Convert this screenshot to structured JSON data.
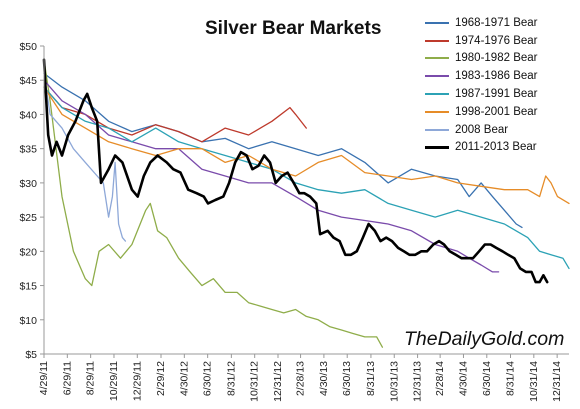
{
  "chart_data": {
    "type": "line",
    "title": "Silver Bear Markets",
    "watermark": "TheDailyGold.com",
    "xlabel": "",
    "ylabel": "",
    "ylim": [
      5,
      50
    ],
    "y_ticks": [
      "$5",
      "$10",
      "$15",
      "$20",
      "$25",
      "$30",
      "$35",
      "$40",
      "$45",
      "$50"
    ],
    "x_ticks": [
      "4/29/11",
      "6/29/11",
      "8/29/11",
      "10/29/11",
      "12/29/11",
      "2/29/12",
      "4/30/12",
      "6/30/12",
      "8/31/12",
      "10/31/12",
      "12/31/12",
      "2/28/13",
      "4/30/13",
      "6/30/13",
      "8/31/13",
      "10/31/13",
      "12/31/13",
      "2/28/14",
      "4/30/14",
      "6/30/14",
      "8/31/14",
      "10/31/14",
      "12/31/14"
    ],
    "x_range": [
      "4/29/11",
      "1/31/15"
    ],
    "grid": false,
    "legend_position": "top-right",
    "series": [
      {
        "name": "1968-1971 Bear",
        "color": "#3a72b0",
        "points": [
          [
            "4/29/11",
            46
          ],
          [
            "6/15/11",
            44
          ],
          [
            "8/15/11",
            42
          ],
          [
            "10/15/11",
            39
          ],
          [
            "12/15/11",
            37.5
          ],
          [
            "2/15/12",
            38.5
          ],
          [
            "4/15/12",
            37.5
          ],
          [
            "6/15/12",
            36
          ],
          [
            "8/15/12",
            36.5
          ],
          [
            "10/15/12",
            35
          ],
          [
            "12/15/12",
            36
          ],
          [
            "2/15/13",
            35
          ],
          [
            "4/15/13",
            34
          ],
          [
            "6/15/13",
            35
          ],
          [
            "8/15/13",
            33
          ],
          [
            "10/15/13",
            30
          ],
          [
            "12/15/13",
            32
          ],
          [
            "2/15/14",
            31
          ],
          [
            "4/15/14",
            30.5
          ],
          [
            "5/15/14",
            28
          ],
          [
            "6/15/14",
            30
          ],
          [
            "7/15/14",
            28
          ],
          [
            "8/15/14",
            26
          ],
          [
            "9/15/14",
            24
          ],
          [
            "9/30/14",
            23.5
          ]
        ]
      },
      {
        "name": "1974-1976 Bear",
        "color": "#be3a2c",
        "points": [
          [
            "4/29/11",
            44
          ],
          [
            "6/15/11",
            41
          ],
          [
            "8/15/11",
            40
          ],
          [
            "10/15/11",
            38
          ],
          [
            "12/15/11",
            37
          ],
          [
            "2/15/12",
            38.5
          ],
          [
            "4/15/12",
            37.5
          ],
          [
            "6/15/12",
            36
          ],
          [
            "8/15/12",
            38
          ],
          [
            "10/15/12",
            37
          ],
          [
            "12/15/12",
            39
          ],
          [
            "1/31/13",
            41
          ],
          [
            "2/15/13",
            40
          ],
          [
            "3/15/13",
            38
          ]
        ]
      },
      {
        "name": "1980-1982 Bear",
        "color": "#8fad4a",
        "points": [
          [
            "4/29/11",
            48
          ],
          [
            "5/15/11",
            42
          ],
          [
            "6/15/11",
            28
          ],
          [
            "7/15/11",
            20
          ],
          [
            "8/15/11",
            16
          ],
          [
            "9/1/11",
            15
          ],
          [
            "9/20/11",
            20
          ],
          [
            "10/15/11",
            21
          ],
          [
            "11/15/11",
            19
          ],
          [
            "12/15/11",
            21
          ],
          [
            "1/20/12",
            26
          ],
          [
            "2/1/12",
            27
          ],
          [
            "2/20/12",
            23
          ],
          [
            "3/15/12",
            22
          ],
          [
            "4/15/12",
            19
          ],
          [
            "5/15/12",
            17
          ],
          [
            "6/15/12",
            15
          ],
          [
            "7/15/12",
            16
          ],
          [
            "8/15/12",
            14
          ],
          [
            "9/15/12",
            14
          ],
          [
            "10/15/12",
            12.5
          ],
          [
            "11/15/12",
            12
          ],
          [
            "12/15/12",
            11.5
          ],
          [
            "1/15/13",
            11
          ],
          [
            "2/15/13",
            11.5
          ],
          [
            "3/15/13",
            10.5
          ],
          [
            "4/15/13",
            10
          ],
          [
            "5/15/13",
            9
          ],
          [
            "6/15/13",
            8.5
          ],
          [
            "7/15/13",
            8
          ],
          [
            "8/15/13",
            7.5
          ],
          [
            "9/15/13",
            7.5
          ],
          [
            "9/30/13",
            6
          ]
        ]
      },
      {
        "name": "1983-1986 Bear",
        "color": "#7a4bab",
        "points": [
          [
            "4/29/11",
            45
          ],
          [
            "6/15/11",
            42
          ],
          [
            "8/15/11",
            40
          ],
          [
            "10/15/11",
            37
          ],
          [
            "12/15/11",
            36
          ],
          [
            "2/15/12",
            35
          ],
          [
            "4/15/12",
            35
          ],
          [
            "6/15/12",
            32
          ],
          [
            "8/15/12",
            31
          ],
          [
            "10/15/12",
            30
          ],
          [
            "12/15/12",
            30
          ],
          [
            "2/15/13",
            28
          ],
          [
            "4/15/13",
            26
          ],
          [
            "6/15/13",
            25
          ],
          [
            "8/15/13",
            24.5
          ],
          [
            "10/15/13",
            24
          ],
          [
            "12/15/13",
            23
          ],
          [
            "2/15/14",
            21
          ],
          [
            "4/15/14",
            20
          ],
          [
            "5/15/14",
            19
          ],
          [
            "6/15/14",
            18
          ],
          [
            "7/15/14",
            17
          ],
          [
            "7/31/14",
            17
          ]
        ]
      },
      {
        "name": "1987-1991 Bear",
        "color": "#2ca2b5",
        "points": [
          [
            "4/29/11",
            44
          ],
          [
            "6/15/11",
            41
          ],
          [
            "8/15/11",
            39
          ],
          [
            "10/15/11",
            38
          ],
          [
            "12/15/11",
            36
          ],
          [
            "2/15/12",
            38
          ],
          [
            "4/15/12",
            36
          ],
          [
            "6/15/12",
            35
          ],
          [
            "8/15/12",
            34
          ],
          [
            "10/15/12",
            33
          ],
          [
            "12/15/12",
            32
          ],
          [
            "2/15/13",
            30
          ],
          [
            "4/15/13",
            29
          ],
          [
            "6/15/13",
            28.5
          ],
          [
            "8/15/13",
            29
          ],
          [
            "10/15/13",
            27
          ],
          [
            "12/15/13",
            26
          ],
          [
            "2/15/14",
            25
          ],
          [
            "4/15/14",
            26
          ],
          [
            "6/15/14",
            25
          ],
          [
            "8/15/14",
            24
          ],
          [
            "10/15/14",
            22
          ],
          [
            "11/15/14",
            20
          ],
          [
            "12/15/14",
            19.5
          ],
          [
            "1/15/15",
            19
          ],
          [
            "1/31/15",
            17.5
          ]
        ]
      },
      {
        "name": "1998-2001 Bear",
        "color": "#e68c28",
        "points": [
          [
            "4/29/11",
            44
          ],
          [
            "6/15/11",
            40
          ],
          [
            "8/15/11",
            38
          ],
          [
            "10/15/11",
            36
          ],
          [
            "12/15/11",
            35
          ],
          [
            "2/15/12",
            34
          ],
          [
            "4/15/12",
            35
          ],
          [
            "6/15/12",
            35
          ],
          [
            "8/15/12",
            33
          ],
          [
            "10/15/12",
            34
          ],
          [
            "12/15/12",
            32
          ],
          [
            "2/15/13",
            31
          ],
          [
            "4/15/13",
            33
          ],
          [
            "6/15/13",
            34
          ],
          [
            "8/15/13",
            31.5
          ],
          [
            "10/15/13",
            31
          ],
          [
            "12/15/13",
            30.5
          ],
          [
            "2/15/14",
            31
          ],
          [
            "4/15/14",
            30
          ],
          [
            "6/15/14",
            29.5
          ],
          [
            "8/15/14",
            29
          ],
          [
            "10/15/14",
            29
          ],
          [
            "11/15/14",
            28
          ],
          [
            "12/1/14",
            31
          ],
          [
            "12/15/14",
            30
          ],
          [
            "1/1/15",
            28
          ],
          [
            "1/31/15",
            27
          ]
        ]
      },
      {
        "name": "2008 Bear",
        "color": "#8ea8d8",
        "points": [
          [
            "4/29/11",
            46
          ],
          [
            "5/15/11",
            40
          ],
          [
            "6/15/11",
            38
          ],
          [
            "7/15/11",
            35
          ],
          [
            "8/15/11",
            33
          ],
          [
            "9/15/11",
            31
          ],
          [
            "10/1/11",
            30
          ],
          [
            "10/15/11",
            25
          ],
          [
            "10/25/11",
            28
          ],
          [
            "11/1/11",
            33
          ],
          [
            "11/10/11",
            24
          ],
          [
            "11/20/11",
            22
          ],
          [
            "11/28/11",
            21.5
          ]
        ]
      },
      {
        "name": "2011-2013 Bear",
        "color": "#000000",
        "points": [
          [
            "4/29/11",
            48
          ],
          [
            "5/10/11",
            37
          ],
          [
            "5/20/11",
            34
          ],
          [
            "6/1/11",
            36
          ],
          [
            "6/15/11",
            34
          ],
          [
            "7/1/11",
            37
          ],
          [
            "7/20/11",
            39
          ],
          [
            "8/10/11",
            42
          ],
          [
            "8/20/11",
            43
          ],
          [
            "9/1/11",
            41
          ],
          [
            "9/15/11",
            39
          ],
          [
            "9/25/11",
            30
          ],
          [
            "10/15/11",
            32
          ],
          [
            "11/1/11",
            34
          ],
          [
            "11/20/11",
            33
          ],
          [
            "12/15/11",
            29
          ],
          [
            "12/30/11",
            28
          ],
          [
            "1/15/12",
            31
          ],
          [
            "2/1/12",
            33
          ],
          [
            "2/20/12",
            34
          ],
          [
            "3/15/12",
            33
          ],
          [
            "4/1/12",
            32
          ],
          [
            "4/20/12",
            31.5
          ],
          [
            "5/10/12",
            29
          ],
          [
            "6/1/12",
            28.5
          ],
          [
            "6/20/12",
            28
          ],
          [
            "7/1/12",
            27
          ],
          [
            "7/20/12",
            27.5
          ],
          [
            "8/10/12",
            28
          ],
          [
            "8/25/12",
            30
          ],
          [
            "9/10/12",
            33
          ],
          [
            "9/25/12",
            34.5
          ],
          [
            "10/10/12",
            34
          ],
          [
            "10/25/12",
            32
          ],
          [
            "11/10/12",
            32.5
          ],
          [
            "11/25/12",
            34
          ],
          [
            "12/10/12",
            33
          ],
          [
            "12/25/12",
            30
          ],
          [
            "1/10/13",
            31
          ],
          [
            "1/25/13",
            31.5
          ],
          [
            "2/10/13",
            30
          ],
          [
            "2/25/13",
            28.5
          ],
          [
            "3/10/13",
            28.5
          ],
          [
            "3/25/13",
            28
          ],
          [
            "4/10/13",
            27
          ],
          [
            "4/20/13",
            22.5
          ],
          [
            "5/10/13",
            23
          ],
          [
            "5/25/13",
            22
          ],
          [
            "6/10/13",
            21.5
          ],
          [
            "6/25/13",
            19.5
          ],
          [
            "7/10/13",
            19.5
          ],
          [
            "7/25/13",
            20
          ],
          [
            "8/10/13",
            22
          ],
          [
            "8/25/13",
            24
          ],
          [
            "9/10/13",
            23
          ],
          [
            "9/25/13",
            21.5
          ],
          [
            "10/10/13",
            22
          ],
          [
            "10/25/13",
            21.5
          ],
          [
            "11/10/13",
            20.5
          ],
          [
            "11/25/13",
            20
          ],
          [
            "12/10/13",
            19.5
          ],
          [
            "12/25/13",
            19.5
          ],
          [
            "1/10/14",
            20
          ],
          [
            "1/25/14",
            20
          ],
          [
            "2/10/14",
            21
          ],
          [
            "2/25/14",
            21.5
          ],
          [
            "3/10/14",
            21
          ],
          [
            "3/25/14",
            20
          ],
          [
            "4/10/14",
            19.5
          ],
          [
            "4/25/14",
            19
          ],
          [
            "5/10/14",
            19
          ],
          [
            "5/25/14",
            19
          ],
          [
            "6/10/14",
            20
          ],
          [
            "6/25/14",
            21
          ],
          [
            "7/10/14",
            21
          ],
          [
            "7/25/14",
            20.5
          ],
          [
            "8/10/14",
            20
          ],
          [
            "8/25/14",
            19.5
          ],
          [
            "9/10/14",
            19
          ],
          [
            "9/25/14",
            17.5
          ],
          [
            "10/10/14",
            17
          ],
          [
            "10/25/14",
            17
          ],
          [
            "11/5/14",
            15.5
          ],
          [
            "11/15/14",
            15.5
          ],
          [
            "11/25/14",
            16.5
          ],
          [
            "12/5/14",
            15.5
          ]
        ]
      }
    ]
  }
}
